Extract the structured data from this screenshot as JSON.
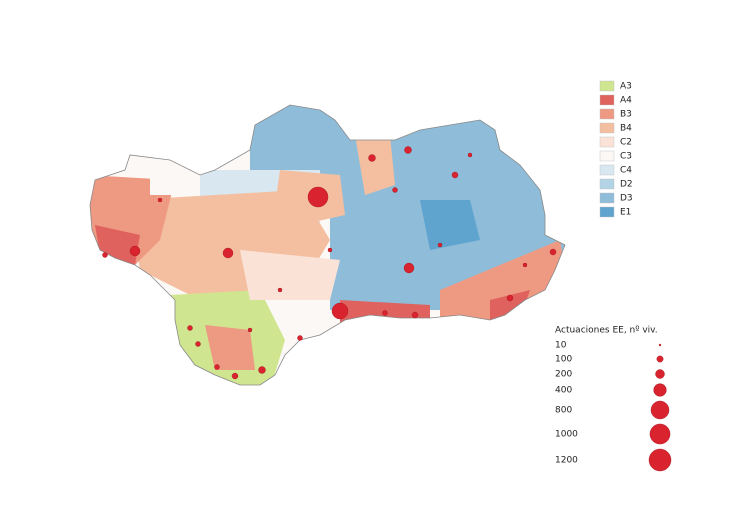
{
  "legend": {
    "classes": [
      {
        "label": "A3",
        "color": "#cfe58f"
      },
      {
        "label": "A4",
        "color": "#e0625e"
      },
      {
        "label": "B3",
        "color": "#ee9a82"
      },
      {
        "label": "B4",
        "color": "#f4bfa0"
      },
      {
        "label": "C2",
        "color": "#fbe2d6"
      },
      {
        "label": "C3",
        "color": "#fbf8f5"
      },
      {
        "label": "C4",
        "color": "#d8e7f0"
      },
      {
        "label": "D2",
        "color": "#b3d3e6"
      },
      {
        "label": "D3",
        "color": "#8fbdd9"
      },
      {
        "label": "E1",
        "color": "#5fa3cf"
      }
    ]
  },
  "size_legend": {
    "title": "Actuaciones EE, nº viv.",
    "values": [
      10,
      100,
      200,
      400,
      800,
      1000,
      1200
    ],
    "color": "#d9232e"
  }
}
